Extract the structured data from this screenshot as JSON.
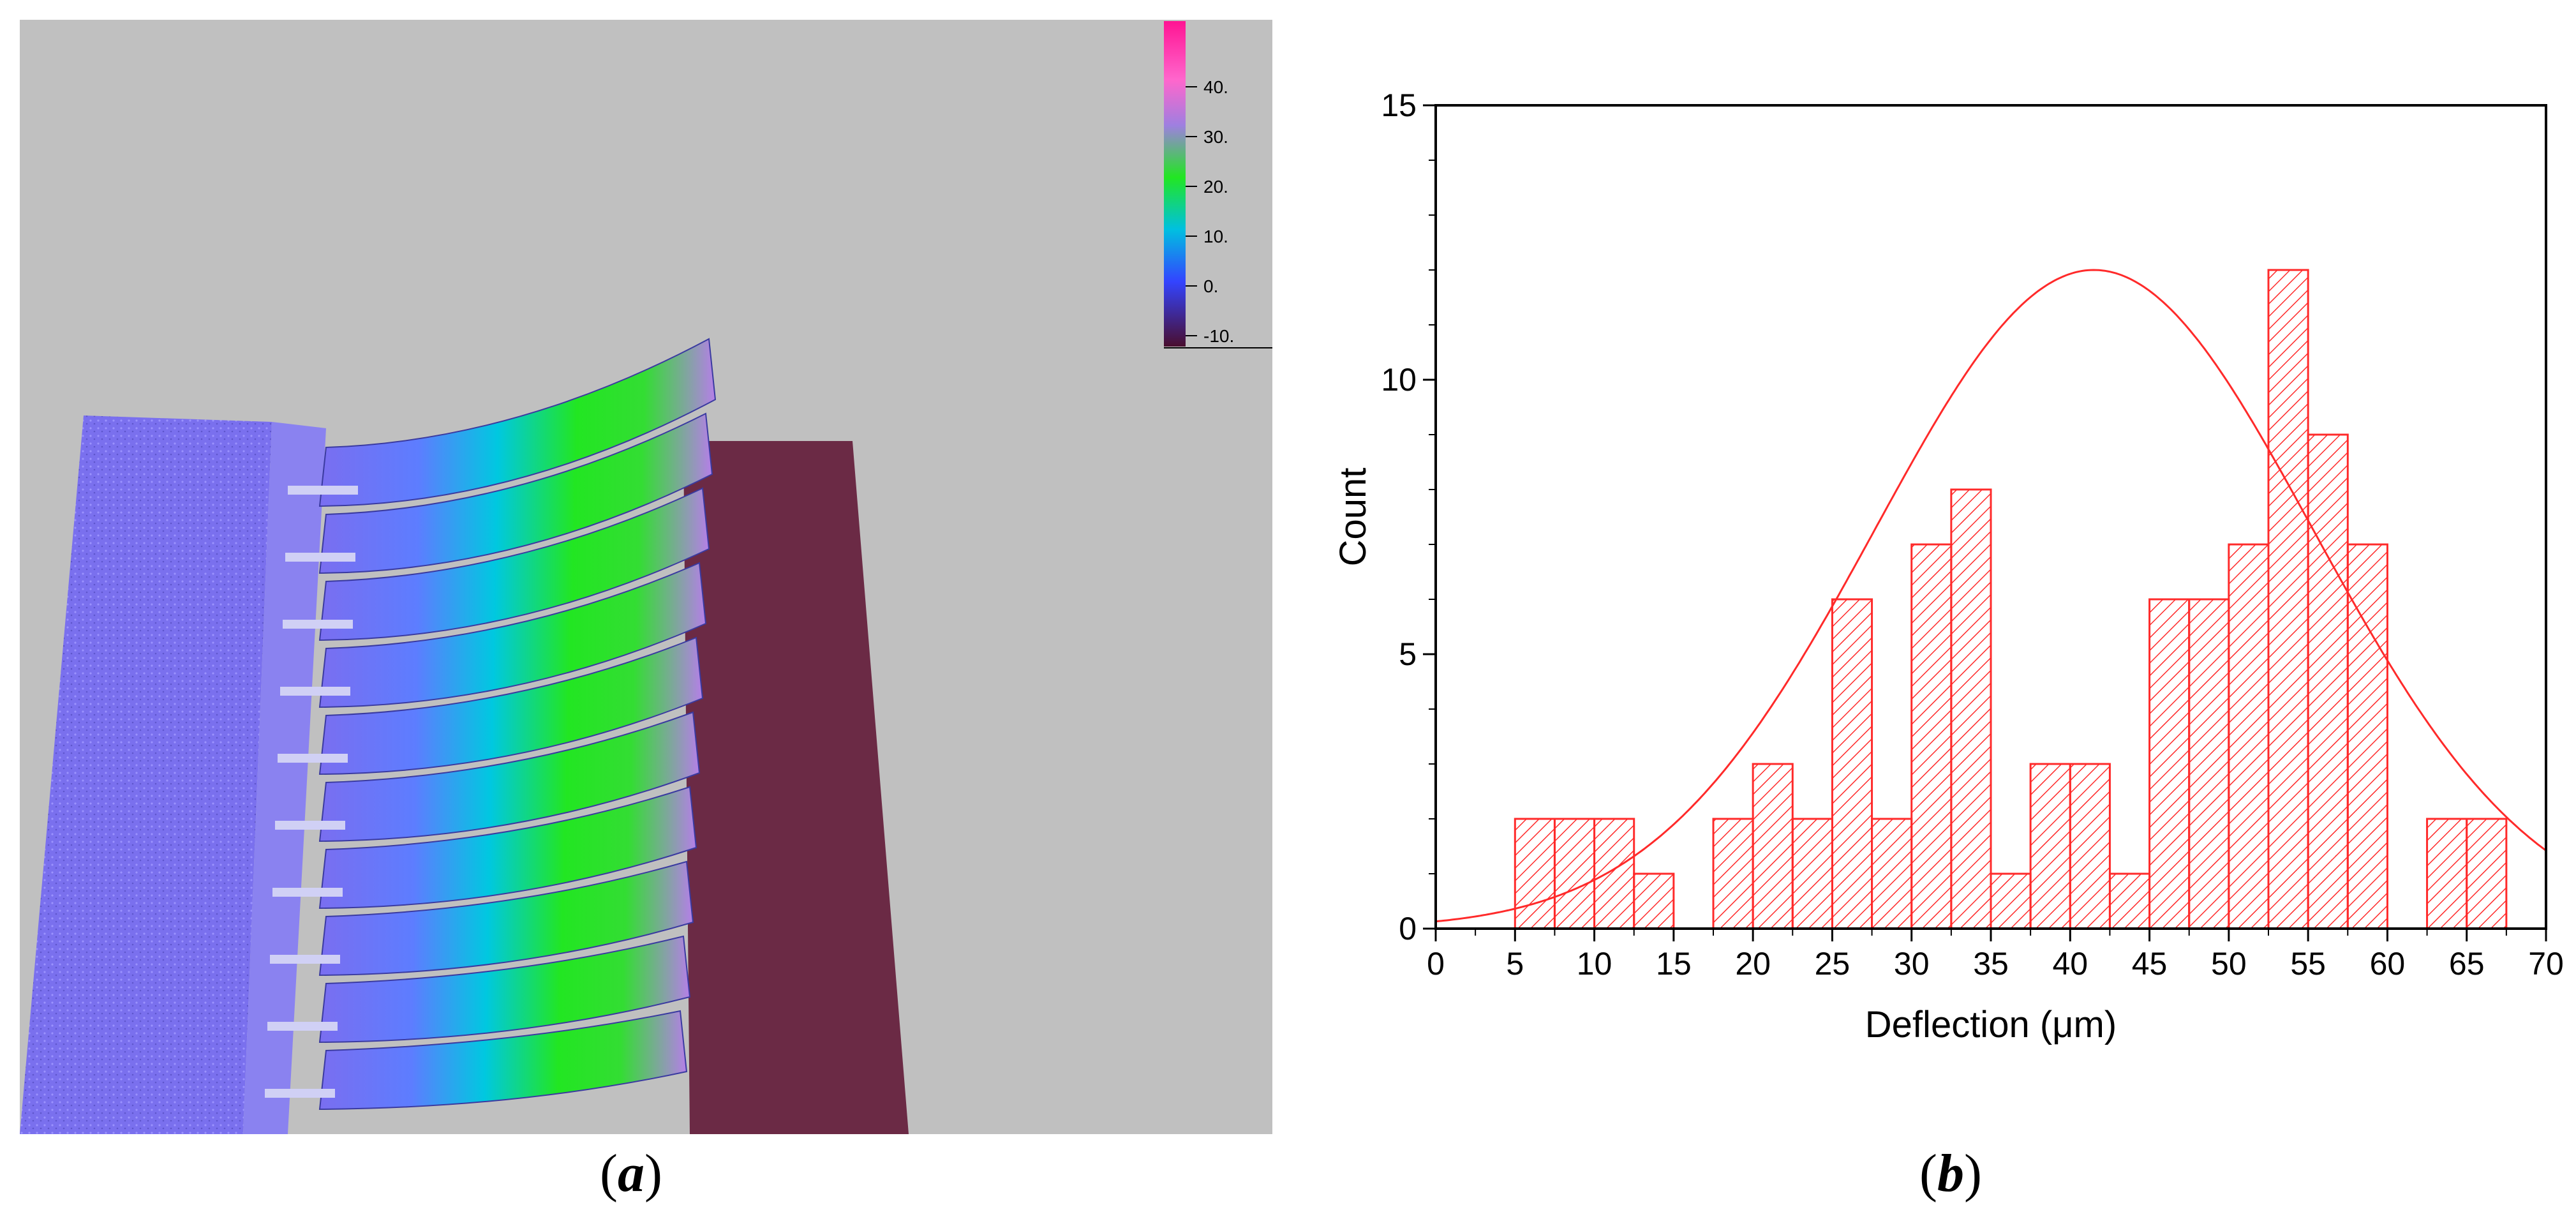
{
  "panel_a": {
    "caption_open": "(",
    "caption_letter": "a",
    "caption_close": ")",
    "colorbar": {
      "labels": [
        "40.",
        "30.",
        "20.",
        "10.",
        "0.",
        "-10."
      ],
      "colors": [
        "#ff1493",
        "#ff66cc",
        "#9f7fe0",
        "#22e622",
        "#00c0e0",
        "#3344ff",
        "#4a0e2e"
      ]
    },
    "colors": {
      "background": "#c0c0c0",
      "base_surface": "#7a6ef0",
      "substrate": "#6b2a45",
      "high": "#ff55dd",
      "mid": "#22e622",
      "low": "#5d5dff"
    }
  },
  "panel_b": {
    "caption_open": "(",
    "caption_letter": "b",
    "caption_close": ")"
  },
  "chart_data": {
    "type": "bar",
    "subtype": "histogram",
    "title": "",
    "xlabel": "Deflection (μm)",
    "ylabel": "Count",
    "xlim": [
      0,
      70
    ],
    "ylim": [
      0,
      15
    ],
    "bin_width": 2.5,
    "xticks": [
      0,
      5,
      10,
      15,
      20,
      25,
      30,
      35,
      40,
      45,
      50,
      55,
      60,
      65,
      70
    ],
    "yticks": [
      0,
      5,
      10,
      15
    ],
    "bins": [
      {
        "start": 5,
        "count": 2
      },
      {
        "start": 7.5,
        "count": 2
      },
      {
        "start": 10,
        "count": 2
      },
      {
        "start": 12.5,
        "count": 1
      },
      {
        "start": 17.5,
        "count": 2
      },
      {
        "start": 20,
        "count": 3
      },
      {
        "start": 22.5,
        "count": 2
      },
      {
        "start": 25,
        "count": 6
      },
      {
        "start": 27.5,
        "count": 2
      },
      {
        "start": 30,
        "count": 7
      },
      {
        "start": 32.5,
        "count": 8
      },
      {
        "start": 35,
        "count": 1
      },
      {
        "start": 37.5,
        "count": 3
      },
      {
        "start": 40,
        "count": 3
      },
      {
        "start": 42.5,
        "count": 1
      },
      {
        "start": 45,
        "count": 6
      },
      {
        "start": 47.5,
        "count": 6
      },
      {
        "start": 50,
        "count": 7
      },
      {
        "start": 52.5,
        "count": 12
      },
      {
        "start": 55,
        "count": 9
      },
      {
        "start": 57.5,
        "count": 7
      },
      {
        "start": 62.5,
        "count": 2
      },
      {
        "start": 65,
        "count": 2
      }
    ],
    "fit_curve": {
      "type": "normal",
      "mean": 41.5,
      "sigma": 13.8,
      "peak": 12
    },
    "color": "#ff2a2a",
    "fill": "hatched",
    "grid": false,
    "legend": "none"
  }
}
